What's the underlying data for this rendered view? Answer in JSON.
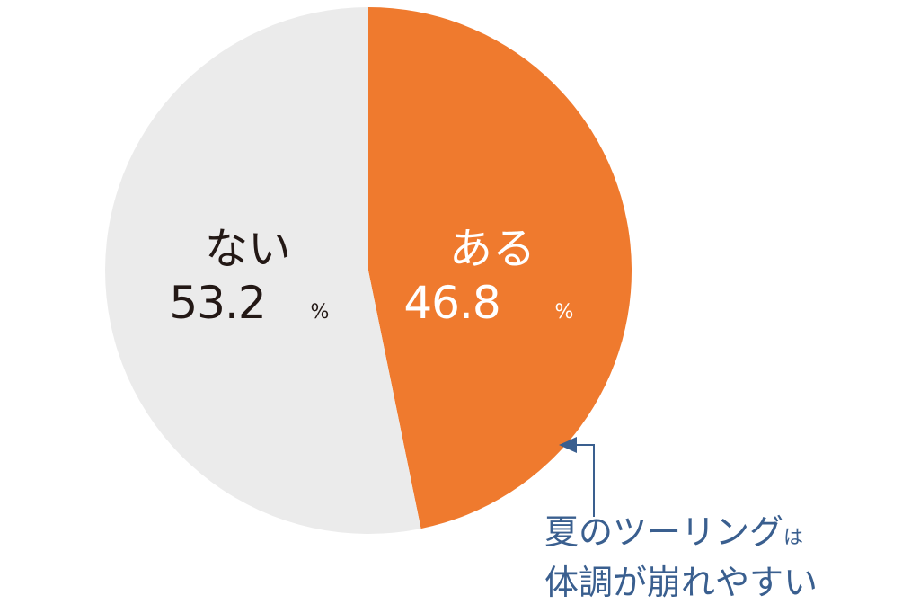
{
  "chart_data": {
    "type": "pie",
    "title": "",
    "labels": [
      "ある",
      "ない"
    ],
    "values": [
      46.8,
      53.2
    ],
    "unit": "%",
    "colors": [
      "#ef7a2e",
      "#ebebeb"
    ],
    "annotation": {
      "line1": "夏のツーリング",
      "line1_particle": "は",
      "line2": "体調が崩れやすい",
      "points_to": "ある",
      "color": "#3a5f8f"
    }
  }
}
